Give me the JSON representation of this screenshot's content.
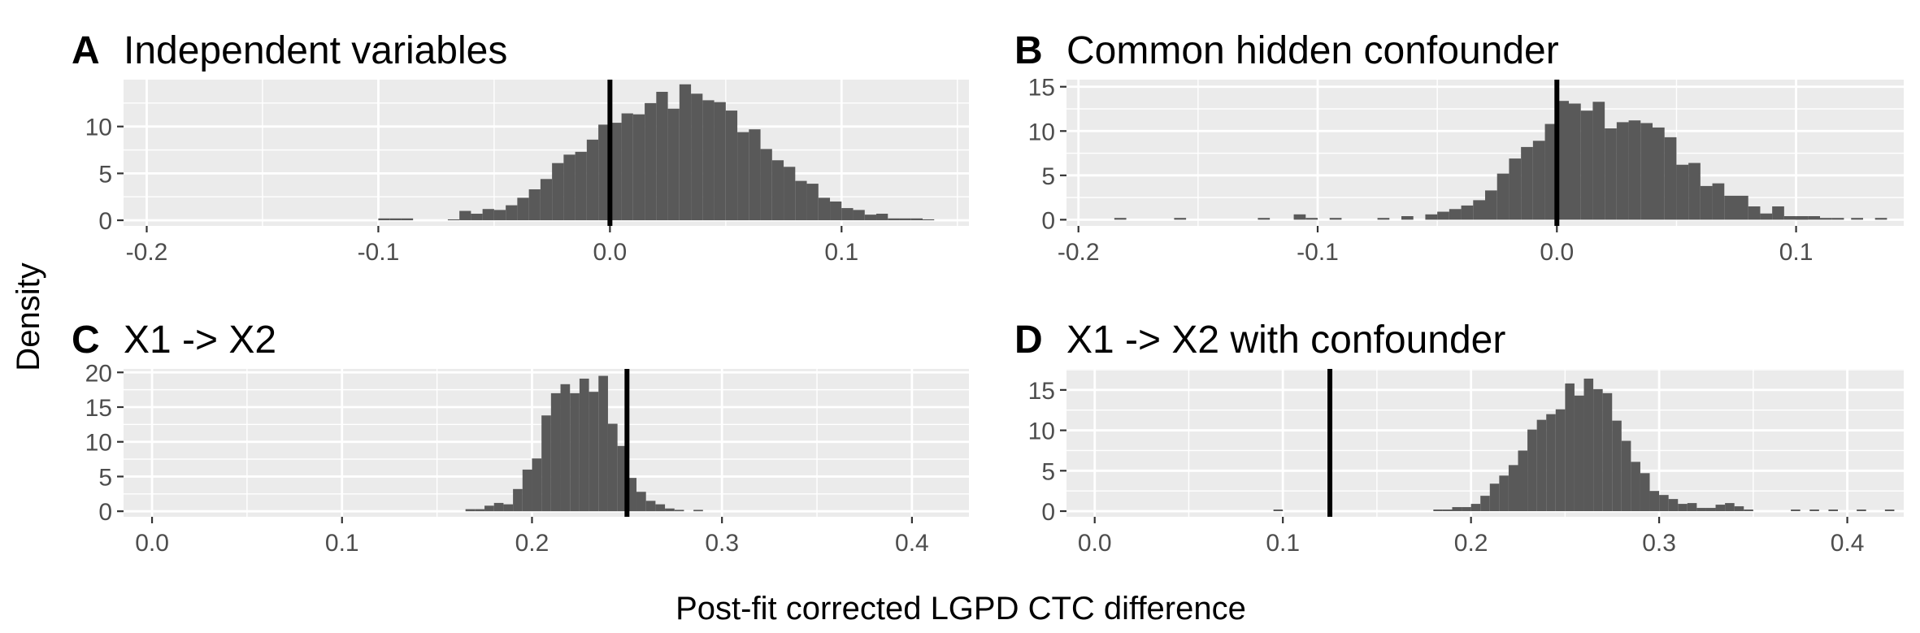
{
  "ylabel": "Density",
  "xlabel": "Post-fit corrected LGPD CTC difference",
  "chart_data": [
    {
      "type": "histogram",
      "tag": "A",
      "title": "Independent variables",
      "xlim": [
        -0.21,
        0.155
      ],
      "ylim": [
        -0.6,
        15
      ],
      "xticks": [
        -0.2,
        -0.1,
        0.0,
        0.1
      ],
      "xtick_labels": [
        "-0.2",
        "-0.1",
        "0.0",
        "0.1"
      ],
      "yticks": [
        0,
        5,
        10
      ],
      "ytick_labels": [
        "0",
        "5",
        "10"
      ],
      "binwidth": 0.005,
      "bins_start": -0.1,
      "values": [
        0.2,
        0.2,
        0.2,
        0,
        0,
        0,
        0.1,
        1.0,
        0.7,
        1.2,
        1.1,
        1.6,
        2.4,
        3.3,
        4.4,
        6.1,
        7.0,
        7.3,
        8.6,
        10.2,
        10.4,
        11.4,
        11.3,
        12.5,
        13.7,
        11.9,
        14.5,
        13.5,
        12.8,
        12.6,
        11.7,
        9.4,
        9.7,
        7.6,
        6.4,
        5.7,
        4.2,
        3.9,
        2.4,
        2.0,
        1.3,
        1.1,
        0.6,
        0.7,
        0.2,
        0.2,
        0.2,
        0.1
      ],
      "reference_line": 0.0
    },
    {
      "type": "histogram",
      "tag": "B",
      "title": "Common hidden confounder",
      "xlim": [
        -0.205,
        0.145
      ],
      "ylim": [
        -0.7,
        15.8
      ],
      "xticks": [
        -0.2,
        -0.1,
        0.0,
        0.1
      ],
      "xtick_labels": [
        "-0.2",
        "-0.1",
        "0.0",
        "0.1"
      ],
      "yticks": [
        0,
        5,
        10,
        15
      ],
      "ytick_labels": [
        "0",
        "5",
        "10",
        "15"
      ],
      "binwidth": 0.005,
      "bins_start": -0.11,
      "values": [
        0.6,
        0.2,
        0,
        0,
        0,
        0,
        0,
        0.2,
        0,
        0.4,
        0,
        0.6,
        0.9,
        1.2,
        1.6,
        2.2,
        3.3,
        5.2,
        6.9,
        8.2,
        8.9,
        10.8,
        13.4,
        13.1,
        12.3,
        13.3,
        10.3,
        11.0,
        11.2,
        10.9,
        10.4,
        9.3,
        6.2,
        6.4,
        3.8,
        4.1,
        2.7,
        2.7,
        1.5,
        0.7,
        1.5,
        0.4,
        0.4,
        0.4,
        0.2
      ],
      "scattered_points": [
        [
          -0.185,
          0.2
        ],
        [
          -0.16,
          0.2
        ],
        [
          -0.125,
          0.2
        ],
        [
          -0.095,
          0.2
        ],
        [
          0.1,
          0.2
        ],
        [
          0.115,
          0.2
        ],
        [
          0.123,
          0.2
        ],
        [
          0.133,
          0.2
        ]
      ],
      "reference_line": 0.0
    },
    {
      "type": "histogram",
      "tag": "C",
      "title": "X1 -> X2",
      "xlim": [
        -0.015,
        0.43
      ],
      "ylim": [
        -0.8,
        20.5
      ],
      "xticks": [
        0.0,
        0.1,
        0.2,
        0.3,
        0.4
      ],
      "xtick_labels": [
        "0.0",
        "0.1",
        "0.2",
        "0.3",
        "0.4"
      ],
      "yticks": [
        0,
        5,
        10,
        15,
        20
      ],
      "ytick_labels": [
        "0",
        "5",
        "10",
        "15",
        "20"
      ],
      "binwidth": 0.005,
      "bins_start": 0.165,
      "values": [
        0.3,
        0.3,
        0.8,
        1.2,
        1.0,
        3.2,
        6.0,
        7.6,
        13.8,
        17.0,
        18.3,
        17.0,
        19.1,
        17.2,
        19.5,
        12.6,
        9.4,
        4.8,
        2.8,
        1.5,
        1.0,
        0.4,
        0.2,
        0,
        0.2
      ],
      "reference_line": 0.25
    },
    {
      "type": "histogram",
      "tag": "D",
      "title": "X1 -> X2 with confounder",
      "xlim": [
        -0.015,
        0.43
      ],
      "ylim": [
        -0.7,
        17.6
      ],
      "xticks": [
        0.0,
        0.1,
        0.2,
        0.3,
        0.4
      ],
      "xtick_labels": [
        "0.0",
        "0.1",
        "0.2",
        "0.3",
        "0.4"
      ],
      "yticks": [
        0,
        5,
        10,
        15
      ],
      "ytick_labels": [
        "0",
        "5",
        "10",
        "15"
      ],
      "binwidth": 0.005,
      "bins_start": 0.19,
      "values": [
        0.5,
        0.5,
        0.9,
        1.9,
        3.4,
        4.4,
        5.7,
        7.5,
        10.1,
        11.3,
        12.0,
        12.6,
        15.8,
        14.3,
        16.4,
        15.1,
        14.6,
        11.2,
        8.7,
        6.1,
        4.7,
        2.5,
        2.0,
        1.5,
        0.9,
        1.0,
        0.4,
        0.4,
        0.8,
        1.0,
        0.6,
        0.2
      ],
      "scattered_points": [
        [
          0.095,
          0.2
        ],
        [
          0.18,
          0.2
        ],
        [
          0.185,
          0.2
        ],
        [
          0.37,
          0.2
        ],
        [
          0.38,
          0.2
        ],
        [
          0.39,
          0.2
        ],
        [
          0.405,
          0.2
        ],
        [
          0.42,
          0.2
        ]
      ],
      "reference_line": 0.125
    }
  ]
}
